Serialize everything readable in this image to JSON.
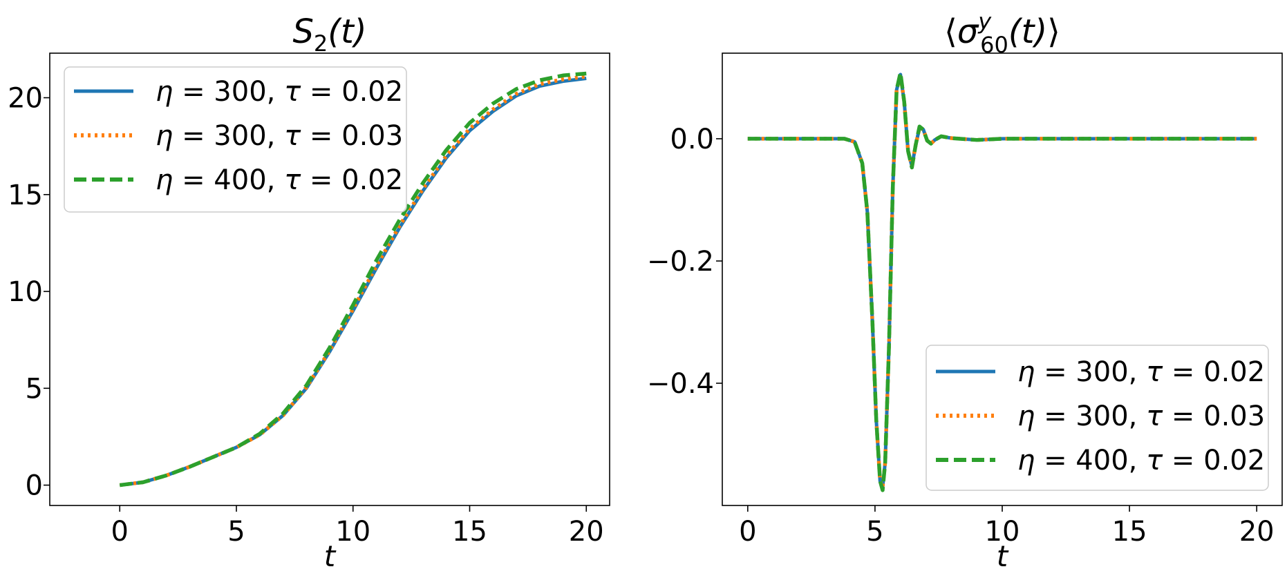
{
  "chart_data": [
    {
      "type": "line",
      "title_parts": {
        "base": "S",
        "sub": "2",
        "rest": "(t)"
      },
      "xlabel": "t",
      "ylabel": "",
      "xlim": [
        -3,
        21
      ],
      "ylim": [
        -1.05,
        22.3
      ],
      "xticks": [
        0,
        5,
        10,
        15,
        20
      ],
      "xtick_labels": [
        "0",
        "5",
        "10",
        "15",
        "20"
      ],
      "yticks": [
        0,
        5,
        10,
        15,
        20
      ],
      "ytick_labels": [
        "0",
        "5",
        "10",
        "15",
        "20"
      ],
      "legend_position": "top-left",
      "grid": false,
      "series": [
        {
          "name": "η = 300, τ = 0.02",
          "legend_parts": [
            "η",
            " = 300, ",
            "τ",
            " = 0.02"
          ],
          "color": "#1f77b4",
          "style": "solid",
          "x": [
            0,
            1,
            2,
            3,
            4,
            5,
            6,
            7,
            8,
            9,
            10,
            11,
            12,
            13,
            14,
            15,
            16,
            17,
            18,
            19,
            20
          ],
          "y": [
            0,
            0.15,
            0.5,
            0.95,
            1.45,
            1.95,
            2.6,
            3.6,
            5.0,
            6.9,
            9.0,
            11.2,
            13.3,
            15.2,
            16.9,
            18.3,
            19.3,
            20.1,
            20.6,
            20.85,
            21.0
          ]
        },
        {
          "name": "η = 300, τ = 0.03",
          "legend_parts": [
            "η",
            " = 300, ",
            "τ",
            " = 0.03"
          ],
          "color": "#ff7f0e",
          "style": "dotted",
          "x": [
            0,
            1,
            2,
            3,
            4,
            5,
            6,
            7,
            8,
            9,
            10,
            11,
            12,
            13,
            14,
            15,
            16,
            17,
            18,
            19,
            20
          ],
          "y": [
            0,
            0.15,
            0.5,
            0.95,
            1.45,
            1.95,
            2.6,
            3.6,
            5.05,
            6.95,
            9.1,
            11.3,
            13.4,
            15.3,
            17.0,
            18.4,
            19.4,
            20.2,
            20.7,
            20.95,
            21.1
          ]
        },
        {
          "name": "η = 400, τ = 0.02",
          "legend_parts": [
            "η",
            " = 400, ",
            "τ",
            " = 0.02"
          ],
          "color": "#2ca02c",
          "style": "dashed",
          "x": [
            0,
            1,
            2,
            3,
            4,
            5,
            6,
            7,
            8,
            9,
            10,
            11,
            12,
            13,
            14,
            15,
            16,
            17,
            18,
            19,
            20
          ],
          "y": [
            0,
            0.15,
            0.5,
            0.95,
            1.45,
            1.95,
            2.65,
            3.7,
            5.15,
            7.1,
            9.3,
            11.6,
            13.7,
            15.6,
            17.3,
            18.7,
            19.7,
            20.45,
            20.9,
            21.15,
            21.25
          ]
        }
      ]
    },
    {
      "type": "line",
      "title_parts": {
        "base": "σ",
        "sup": "y",
        "sub": "60",
        "rest": "(t)"
      },
      "xlabel": "t",
      "ylabel": "",
      "xlim": [
        -1,
        21
      ],
      "ylim": [
        -0.6,
        0.14
      ],
      "xticks": [
        0,
        5,
        10,
        15,
        20
      ],
      "xtick_labels": [
        "0",
        "5",
        "10",
        "15",
        "20"
      ],
      "yticks": [
        0,
        -0.2,
        -0.4
      ],
      "ytick_labels": [
        "0.0",
        "−0.2",
        "−0.4"
      ],
      "legend_position": "bottom-right",
      "grid": false,
      "series": [
        {
          "name": "η = 300, τ = 0.02",
          "legend_parts": [
            "η",
            " = 300, ",
            "τ",
            " = 0.02"
          ],
          "color": "#1f77b4",
          "style": "solid",
          "x": [
            0,
            3.8,
            4.2,
            4.5,
            4.7,
            4.9,
            5.05,
            5.2,
            5.3,
            5.4,
            5.55,
            5.7,
            5.85,
            6.0,
            6.15,
            6.3,
            6.45,
            6.6,
            6.75,
            6.9,
            7.05,
            7.2,
            7.35,
            7.6,
            8.0,
            9.0,
            10.0,
            15.0,
            20.0
          ],
          "y": [
            0,
            0,
            -0.005,
            -0.04,
            -0.12,
            -0.3,
            -0.46,
            -0.56,
            -0.57,
            -0.53,
            -0.34,
            -0.08,
            0.08,
            0.105,
            0.06,
            -0.02,
            -0.045,
            -0.01,
            0.018,
            0.015,
            -0.003,
            -0.008,
            -0.002,
            0.004,
            0.001,
            -0.002,
            0.0,
            0.0,
            0.0
          ]
        },
        {
          "name": "η = 300, τ = 0.03",
          "legend_parts": [
            "η",
            " = 300, ",
            "τ",
            " = 0.03"
          ],
          "color": "#ff7f0e",
          "style": "dotted",
          "x": [
            0,
            3.8,
            4.2,
            4.5,
            4.7,
            4.9,
            5.05,
            5.2,
            5.3,
            5.4,
            5.55,
            5.7,
            5.85,
            6.0,
            6.15,
            6.3,
            6.45,
            6.6,
            6.75,
            6.9,
            7.05,
            7.2,
            7.35,
            7.6,
            8.0,
            9.0,
            10.0,
            15.0,
            20.0
          ],
          "y": [
            0,
            0,
            -0.005,
            -0.04,
            -0.12,
            -0.3,
            -0.46,
            -0.56,
            -0.57,
            -0.53,
            -0.34,
            -0.08,
            0.08,
            0.105,
            0.06,
            -0.02,
            -0.045,
            -0.01,
            0.018,
            0.015,
            -0.003,
            -0.008,
            -0.002,
            0.004,
            0.001,
            -0.002,
            0.0,
            0.0,
            0.0
          ]
        },
        {
          "name": "η = 400, τ = 0.02",
          "legend_parts": [
            "η",
            " = 400, ",
            "τ",
            " = 0.02"
          ],
          "color": "#2ca02c",
          "style": "dashed",
          "x": [
            0,
            3.8,
            4.2,
            4.5,
            4.7,
            4.9,
            5.05,
            5.2,
            5.3,
            5.4,
            5.55,
            5.7,
            5.85,
            6.0,
            6.15,
            6.3,
            6.45,
            6.6,
            6.75,
            6.9,
            7.05,
            7.2,
            7.35,
            7.6,
            8.0,
            9.0,
            10.0,
            15.0,
            20.0
          ],
          "y": [
            0,
            0,
            -0.005,
            -0.04,
            -0.12,
            -0.3,
            -0.46,
            -0.56,
            -0.575,
            -0.53,
            -0.34,
            -0.08,
            0.08,
            0.108,
            0.06,
            -0.02,
            -0.047,
            -0.01,
            0.02,
            0.015,
            -0.003,
            -0.008,
            -0.002,
            0.004,
            0.001,
            -0.002,
            0.0,
            0.0,
            0.0
          ]
        }
      ]
    }
  ]
}
